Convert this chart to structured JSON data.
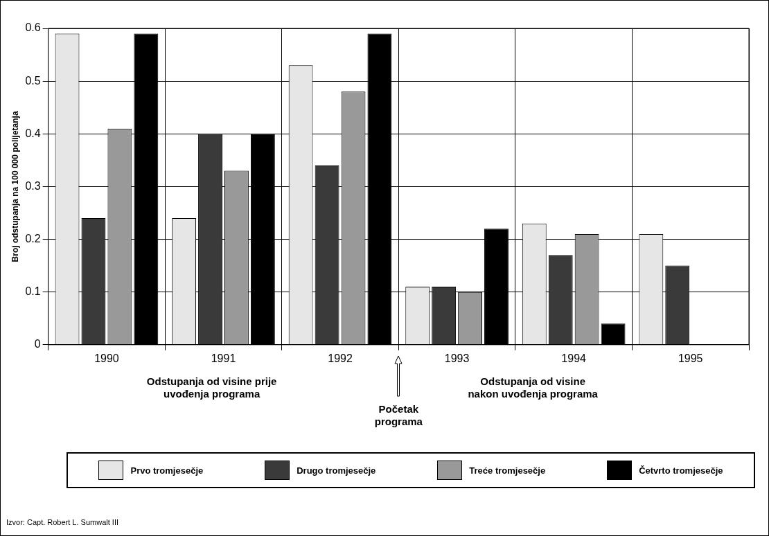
{
  "chart_data": {
    "type": "bar",
    "ylabel": "Broj odstupanja na 100 000 polijetanja",
    "categories": [
      "1990",
      "1991",
      "1992",
      "1993",
      "1994",
      "1995"
    ],
    "series": [
      {
        "name": "Prvo tromjesečje",
        "color": "#e6e6e6",
        "values": [
          0.59,
          0.24,
          0.53,
          0.11,
          0.23,
          0.21
        ]
      },
      {
        "name": "Drugo tromjesečje",
        "color": "#3a3a3a",
        "values": [
          0.24,
          0.4,
          0.34,
          0.11,
          0.17,
          0.15
        ]
      },
      {
        "name": "Treće tromjesečje",
        "color": "#999999",
        "values": [
          0.41,
          0.33,
          0.48,
          0.1,
          0.21,
          null
        ]
      },
      {
        "name": "Četvrto tromjesečje",
        "color": "#000000",
        "values": [
          0.59,
          0.4,
          0.59,
          0.22,
          0.04,
          null
        ]
      }
    ],
    "ylim": [
      0,
      0.6
    ],
    "yticks": [
      0,
      0.1,
      0.2,
      0.3,
      0.4,
      0.5,
      0.6
    ],
    "grid": true,
    "legend": "bottom",
    "annotations": [
      "Odstupanja od visine prije uvođenja programa",
      "Početak programa",
      "Odstupanja od visine nakon uvođenja programa",
      "Izvor: Capt. Robert L. Sumwalt III"
    ]
  }
}
